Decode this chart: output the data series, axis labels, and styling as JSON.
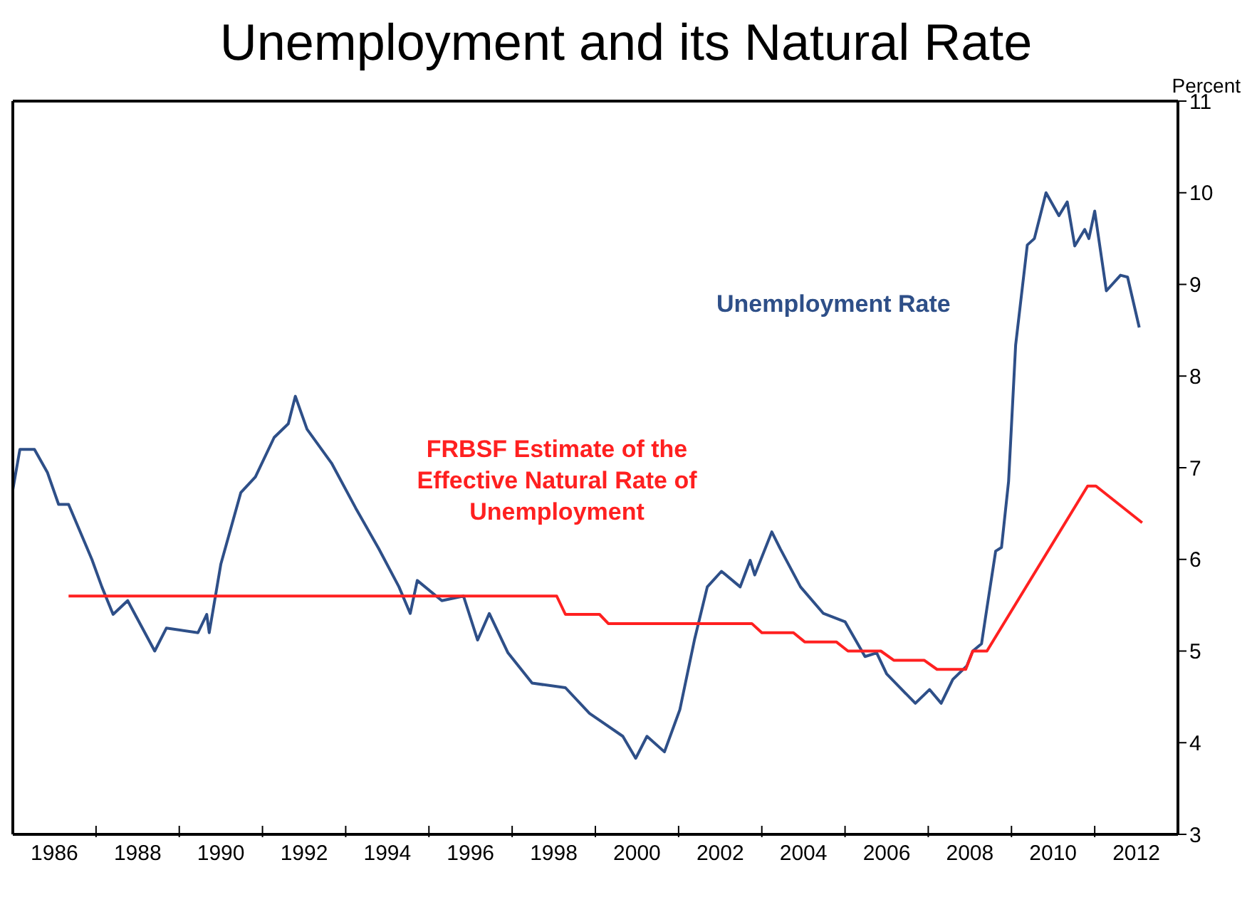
{
  "chart_data": {
    "type": "line",
    "title": "Unemployment and its Natural Rate",
    "ylabel": "Percent",
    "xlim": [
      1985,
      2013
    ],
    "xticks": [
      {
        "value": 1986,
        "label": "1986"
      },
      {
        "value": 1987,
        "label": null
      },
      {
        "value": 1988,
        "label": "1988"
      },
      {
        "value": 1989,
        "label": null
      },
      {
        "value": 1990,
        "label": "1990"
      },
      {
        "value": 1991,
        "label": null
      },
      {
        "value": 1992,
        "label": "1992"
      },
      {
        "value": 1993,
        "label": null
      },
      {
        "value": 1994,
        "label": "1994"
      },
      {
        "value": 1995,
        "label": null
      },
      {
        "value": 1996,
        "label": "1996"
      },
      {
        "value": 1997,
        "label": null
      },
      {
        "value": 1998,
        "label": "1998"
      },
      {
        "value": 1999,
        "label": null
      },
      {
        "value": 2000,
        "label": "2000"
      },
      {
        "value": 2001,
        "label": null
      },
      {
        "value": 2002,
        "label": "2002"
      },
      {
        "value": 2003,
        "label": null
      },
      {
        "value": 2004,
        "label": "2004"
      },
      {
        "value": 2005,
        "label": null
      },
      {
        "value": 2006,
        "label": "2006"
      },
      {
        "value": 2007,
        "label": null
      },
      {
        "value": 2008,
        "label": "2008"
      },
      {
        "value": 2009,
        "label": null
      },
      {
        "value": 2010,
        "label": "2010"
      },
      {
        "value": 2011,
        "label": null
      },
      {
        "value": 2012,
        "label": "2012"
      }
    ],
    "ylim": [
      3,
      11
    ],
    "yticks": [
      3,
      4,
      5,
      6,
      7,
      8,
      9,
      10,
      11
    ],
    "marker": "none",
    "line_style": "solid",
    "series": [
      {
        "name": "Unemployment Rate",
        "color": "#2e4f88",
        "x": [
          1985.0,
          1985.17,
          1985.52,
          1985.83,
          1986.1,
          1986.34,
          1986.9,
          1987.14,
          1987.41,
          1987.76,
          1988.41,
          1988.69,
          1989.45,
          1989.66,
          1989.72,
          1990.0,
          1990.48,
          1990.83,
          1991.28,
          1991.62,
          1991.79,
          1992.07,
          1992.66,
          1993.24,
          1993.79,
          1994.28,
          1994.55,
          1994.72,
          1995.31,
          1995.83,
          1996.17,
          1996.45,
          1996.9,
          1997.48,
          1998.28,
          1998.86,
          1999.66,
          1999.97,
          2000.24,
          2000.66,
          2001.03,
          2001.38,
          2001.69,
          2002.03,
          2002.48,
          2002.72,
          2002.83,
          2003.24,
          2003.45,
          2003.93,
          2004.48,
          2005.0,
          2005.48,
          2005.76,
          2006.0,
          2006.69,
          2007.03,
          2007.31,
          2007.59,
          2007.93,
          2008.07,
          2008.28,
          2008.41,
          2008.62,
          2008.76,
          2008.93,
          2009.1,
          2009.38,
          2009.55,
          2009.83,
          2010.14,
          2010.34,
          2010.52,
          2010.76,
          2010.86,
          2011.0,
          2011.28,
          2011.62,
          2011.79,
          2012.07
        ],
        "values": [
          6.76,
          7.2,
          7.2,
          6.95,
          6.6,
          6.6,
          6.0,
          5.7,
          5.4,
          5.55,
          5.0,
          5.25,
          5.2,
          5.4,
          5.2,
          5.95,
          6.73,
          6.9,
          7.33,
          7.48,
          7.78,
          7.42,
          7.05,
          6.56,
          6.12,
          5.7,
          5.41,
          5.77,
          5.55,
          5.6,
          5.12,
          5.41,
          4.98,
          4.65,
          4.6,
          4.32,
          4.07,
          3.83,
          4.07,
          3.9,
          4.36,
          5.12,
          5.7,
          5.87,
          5.7,
          5.99,
          5.83,
          6.3,
          6.11,
          5.7,
          5.41,
          5.32,
          4.94,
          4.98,
          4.75,
          4.43,
          4.58,
          4.43,
          4.69,
          4.84,
          5.0,
          5.08,
          5.47,
          6.09,
          6.13,
          6.85,
          8.34,
          9.43,
          9.5,
          10.0,
          9.75,
          9.9,
          9.42,
          9.6,
          9.5,
          9.8,
          8.93,
          9.1,
          9.08,
          8.53
        ]
      },
      {
        "name": "FRBSF Estimate of the Effective Natural Rate of Unemployment",
        "color": "#ff2020",
        "x": [
          1986.34,
          1998.07,
          1998.28,
          1999.1,
          1999.31,
          2002.76,
          2003.0,
          2003.76,
          2004.03,
          2004.79,
          2005.07,
          2005.86,
          2006.17,
          2006.9,
          2007.21,
          2007.9,
          2008.07,
          2008.41,
          2010.83,
          2011.03,
          2012.14
        ],
        "values": [
          5.6,
          5.6,
          5.4,
          5.4,
          5.3,
          5.3,
          5.2,
          5.2,
          5.1,
          5.1,
          5.0,
          5.0,
          4.9,
          4.9,
          4.8,
          4.8,
          5.0,
          5.0,
          6.8,
          6.8,
          6.4
        ]
      }
    ]
  }
}
